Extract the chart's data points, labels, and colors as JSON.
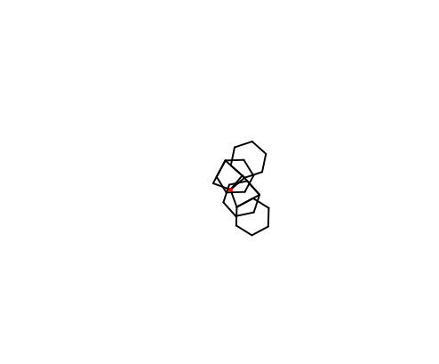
{
  "figsize": [
    4.94,
    4.09
  ],
  "dpi": 100,
  "background_color": "#ffffff",
  "bond_color": "#000000",
  "B_color": "#cc8800",
  "O_color": "#ff0000",
  "label_color": "#000000",
  "lw": 1.4,
  "font_size": 7.5
}
